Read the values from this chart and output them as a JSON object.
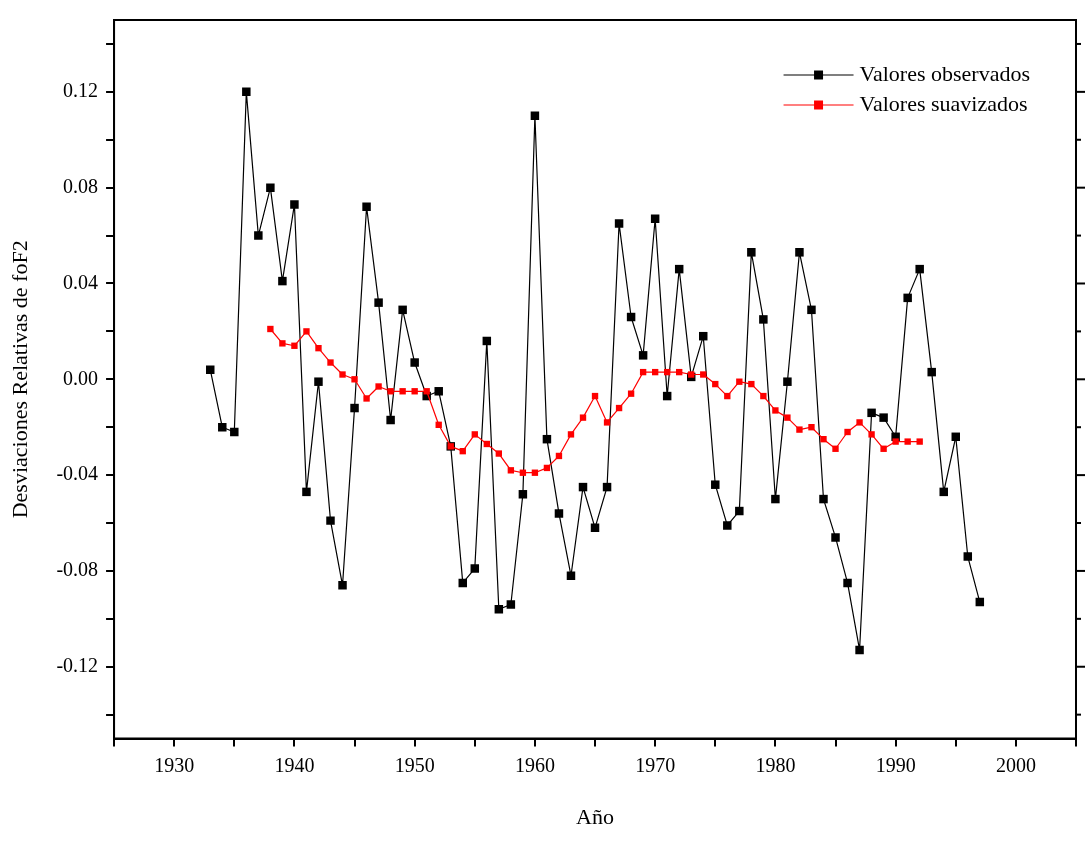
{
  "chart_data": {
    "type": "line",
    "xlabel": "Año",
    "ylabel": "Desviaciones Relativas de foF2",
    "xlim": [
      1925,
      2005
    ],
    "xticks": [
      {
        "value": 1925,
        "label": null
      },
      1930,
      {
        "value": 1935,
        "label": null
      },
      1940,
      {
        "value": 1945,
        "label": null
      },
      1950,
      {
        "value": 1955,
        "label": null
      },
      1960,
      {
        "value": 1965,
        "label": null
      },
      1970,
      {
        "value": 1975,
        "label": null
      },
      1980,
      {
        "value": 1985,
        "label": null
      },
      1990,
      {
        "value": 1995,
        "label": null
      },
      2000,
      {
        "value": 2005,
        "label": null
      }
    ],
    "ylim": [
      -0.15,
      0.15
    ],
    "yticks": [
      {
        "value": -0.14,
        "label": null
      },
      -0.12,
      {
        "value": -0.1,
        "label": null
      },
      -0.08,
      {
        "value": -0.06,
        "label": null
      },
      -0.04,
      {
        "value": -0.02,
        "label": null
      },
      {
        "value": 0,
        "label": "0.00"
      },
      {
        "value": 0.02,
        "label": null
      },
      0.04,
      {
        "value": 0.06,
        "label": null
      },
      0.08,
      {
        "value": 0.1,
        "label": null
      },
      0.12,
      {
        "value": 0.14,
        "label": null
      }
    ],
    "grid": false,
    "legend": "top right",
    "marker": "square",
    "line_style": "solid",
    "series": [
      {
        "name": "Valores observados",
        "color": "#000000",
        "x": [
          1933,
          1934,
          1935,
          1936,
          1937,
          1938,
          1939,
          1940,
          1941,
          1942,
          1943,
          1944,
          1945,
          1946,
          1947,
          1948,
          1949,
          1950,
          1951,
          1952,
          1953,
          1954,
          1955,
          1956,
          1957,
          1958,
          1959,
          1960,
          1961,
          1962,
          1963,
          1964,
          1965,
          1966,
          1967,
          1968,
          1969,
          1970,
          1971,
          1972,
          1973,
          1974,
          1975,
          1976,
          1977,
          1978,
          1979,
          1980,
          1981,
          1982,
          1983,
          1984,
          1985,
          1986,
          1987,
          1988,
          1989,
          1990,
          1991,
          1992,
          1993,
          1994,
          1995,
          1996,
          1997
        ],
        "values": [
          0.004,
          -0.02,
          -0.022,
          0.12,
          0.06,
          0.08,
          0.041,
          0.073,
          -0.047,
          -0.001,
          -0.059,
          -0.086,
          -0.012,
          0.072,
          0.032,
          -0.017,
          0.029,
          0.007,
          -0.007,
          -0.005,
          -0.028,
          -0.085,
          -0.079,
          0.016,
          -0.096,
          -0.094,
          -0.048,
          0.11,
          -0.025,
          -0.056,
          -0.082,
          -0.045,
          -0.062,
          -0.045,
          0.065,
          0.026,
          0.01,
          0.067,
          -0.007,
          0.046,
          0.001,
          0.018,
          -0.044,
          -0.061,
          -0.055,
          0.053,
          0.025,
          -0.05,
          -0.001,
          0.053,
          0.029,
          -0.05,
          -0.066,
          -0.085,
          -0.113,
          -0.014,
          -0.016,
          -0.024,
          0.034,
          0.046,
          0.003,
          -0.047,
          -0.024,
          -0.074,
          -0.093
        ]
      },
      {
        "name": "Valores suavizados",
        "color": "#ff0000",
        "x": [
          1938,
          1939,
          1940,
          1941,
          1942,
          1943,
          1944,
          1945,
          1946,
          1947,
          1948,
          1949,
          1950,
          1951,
          1952,
          1953,
          1954,
          1955,
          1956,
          1957,
          1958,
          1959,
          1960,
          1961,
          1962,
          1963,
          1964,
          1965,
          1966,
          1967,
          1968,
          1969,
          1970,
          1971,
          1972,
          1973,
          1974,
          1975,
          1976,
          1977,
          1978,
          1979,
          1980,
          1981,
          1982,
          1983,
          1984,
          1985,
          1986,
          1987,
          1988,
          1989,
          1990,
          1991,
          1992
        ],
        "values": [
          0.021,
          0.015,
          0.014,
          0.02,
          0.013,
          0.007,
          0.002,
          0.0,
          -0.008,
          -0.003,
          -0.005,
          -0.005,
          -0.005,
          -0.005,
          -0.019,
          -0.028,
          -0.03,
          -0.023,
          -0.027,
          -0.031,
          -0.038,
          -0.039,
          -0.039,
          -0.037,
          -0.032,
          -0.023,
          -0.016,
          -0.007,
          -0.018,
          -0.012,
          -0.006,
          0.003,
          0.003,
          0.003,
          0.003,
          0.002,
          0.002,
          -0.002,
          -0.007,
          -0.001,
          -0.002,
          -0.007,
          -0.013,
          -0.016,
          -0.021,
          -0.02,
          -0.025,
          -0.029,
          -0.022,
          -0.018,
          -0.023,
          -0.029,
          -0.026,
          -0.026,
          -0.026
        ]
      }
    ]
  }
}
